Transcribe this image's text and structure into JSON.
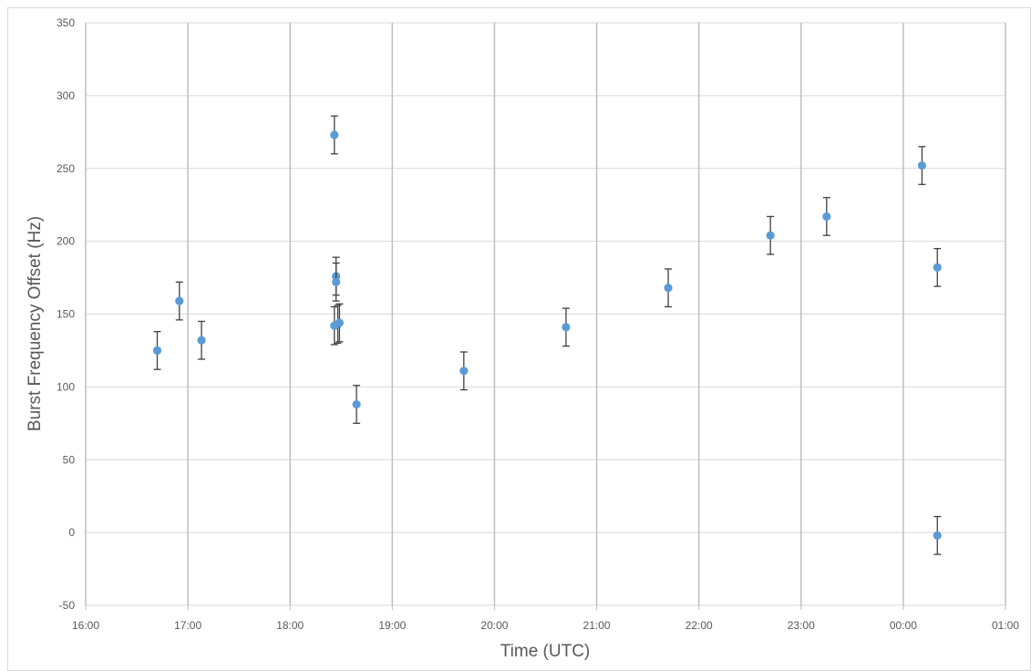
{
  "chart_data": {
    "type": "scatter",
    "title": "",
    "xlabel": "Time (UTC)",
    "ylabel": "Burst Frequency Offset (Hz)",
    "x_ticks": [
      "16:00",
      "17:00",
      "18:00",
      "19:00",
      "20:00",
      "21:00",
      "22:00",
      "23:00",
      "00:00",
      "01:00"
    ],
    "y_ticks": [
      350,
      300,
      250,
      200,
      150,
      100,
      50,
      0,
      -50
    ],
    "ylim": [
      -50,
      350
    ],
    "xlim": [
      "16:00",
      "01:00"
    ],
    "grid": true,
    "marker_color": "#5b9bd5",
    "error_bar_color": "#404040",
    "error": 13,
    "series": [
      {
        "points": [
          {
            "x": "16:42",
            "y": 125
          },
          {
            "x": "16:55",
            "y": 159
          },
          {
            "x": "17:08",
            "y": 132
          },
          {
            "x": "18:26",
            "y": 273
          },
          {
            "x": "18:26",
            "y": 142
          },
          {
            "x": "18:27",
            "y": 176
          },
          {
            "x": "18:27",
            "y": 172
          },
          {
            "x": "18:28",
            "y": 143
          },
          {
            "x": "18:29",
            "y": 144
          },
          {
            "x": "18:39",
            "y": 88
          },
          {
            "x": "19:42",
            "y": 111
          },
          {
            "x": "20:42",
            "y": 141
          },
          {
            "x": "21:42",
            "y": 168
          },
          {
            "x": "22:42",
            "y": 204
          },
          {
            "x": "23:15",
            "y": 217
          },
          {
            "x": "00:11",
            "y": 252
          },
          {
            "x": "00:20",
            "y": 182
          },
          {
            "x": "00:20",
            "y": -2
          }
        ]
      }
    ]
  }
}
